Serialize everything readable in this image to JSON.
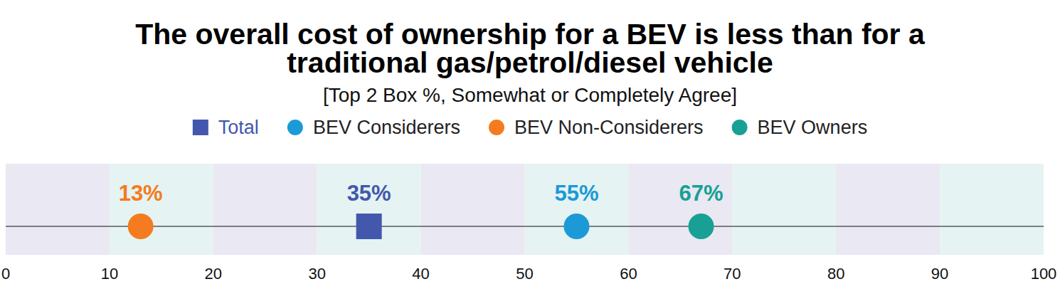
{
  "chart_data": {
    "type": "dot",
    "title": "The overall cost of ownership for a BEV is less than for a traditional gas/petrol/diesel vehicle",
    "subtitle": "[Top 2 Box %, Somewhat or Completely Agree]",
    "orientation": "horizontal",
    "legend": "top",
    "grid": true,
    "data_labels": true,
    "xlim": [
      0,
      100
    ],
    "xticks": [
      0,
      10,
      20,
      30,
      40,
      50,
      60,
      70,
      80,
      90,
      100
    ],
    "series": [
      {
        "name": "Total",
        "color": "#4358ad",
        "marker": "square",
        "values": [
          35
        ],
        "value_labels": [
          "35%"
        ]
      },
      {
        "name": "BEV Considerers",
        "color": "#1b9ad7",
        "marker": "circle",
        "values": [
          55
        ],
        "value_labels": [
          "55%"
        ]
      },
      {
        "name": "BEV Non-Considerers",
        "color": "#f47b20",
        "marker": "circle",
        "values": [
          13
        ],
        "value_labels": [
          "13%"
        ]
      },
      {
        "name": "BEV Owners",
        "color": "#18a095",
        "marker": "circle",
        "values": [
          67
        ],
        "value_labels": [
          "67%"
        ]
      }
    ]
  }
}
